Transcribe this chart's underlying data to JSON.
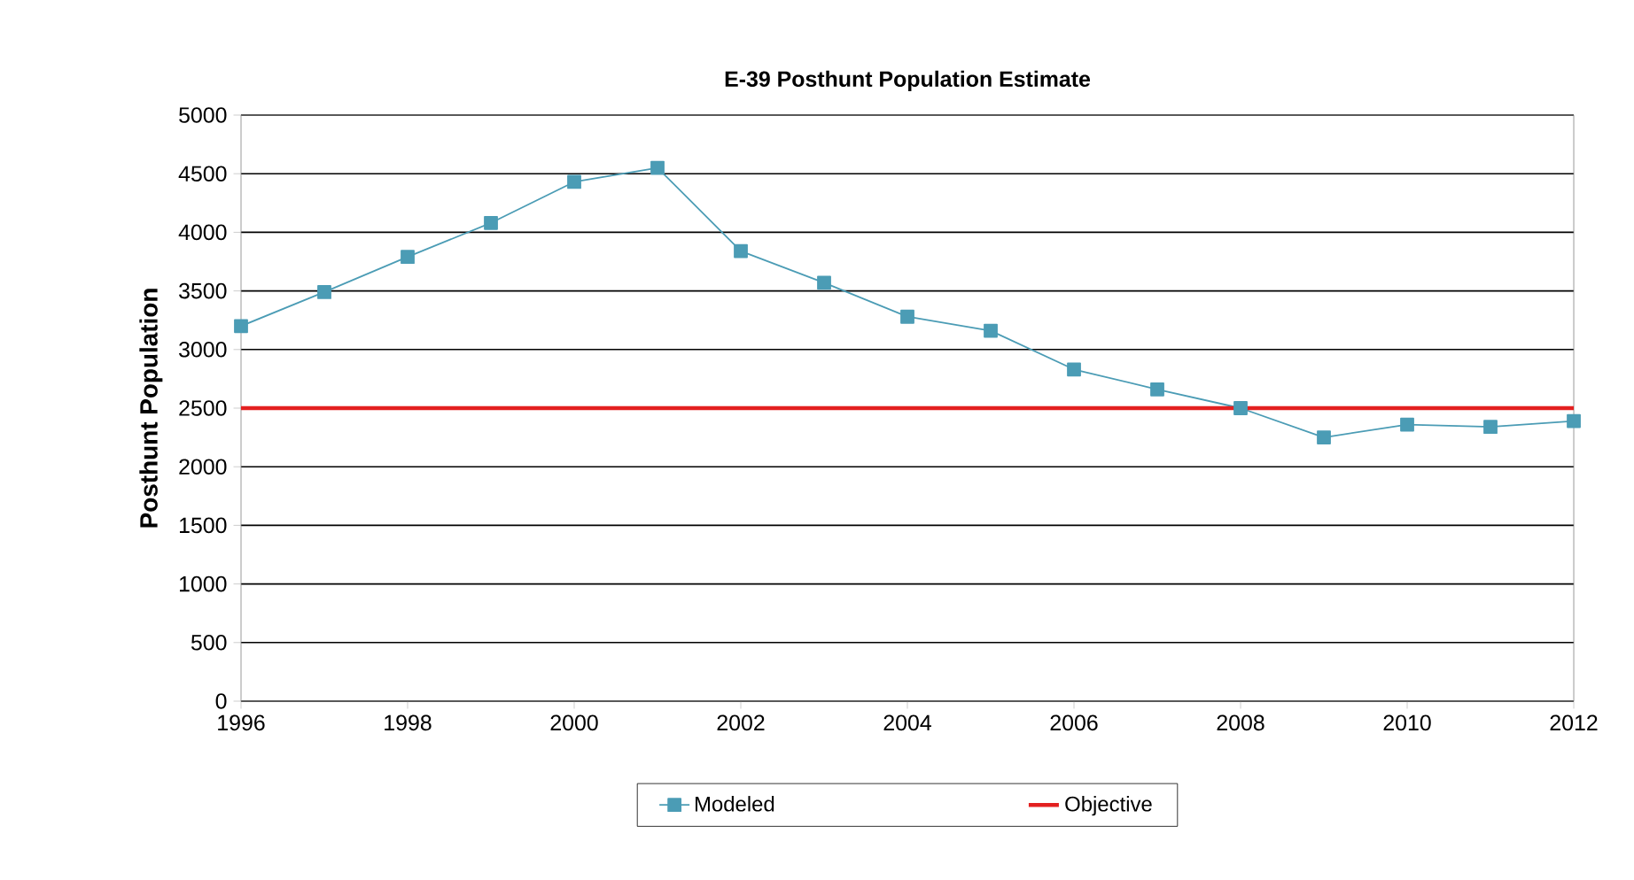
{
  "chart_data": {
    "type": "line",
    "title": "E-39 Posthunt Population Estimate",
    "ylabel": "Posthunt Population",
    "x": [
      1996,
      1997,
      1998,
      1999,
      2000,
      2001,
      2002,
      2003,
      2004,
      2005,
      2006,
      2007,
      2008,
      2009,
      2010,
      2011,
      2012
    ],
    "series": [
      {
        "name": "Modeled",
        "color": "#4b9cb5",
        "values": [
          3200,
          3490,
          3790,
          4080,
          4430,
          4550,
          3840,
          3570,
          3280,
          3160,
          2830,
          2660,
          2500,
          2250,
          2360,
          2340,
          2390
        ]
      }
    ],
    "ref_lines": [
      {
        "axis": "y",
        "value": 2500,
        "label": "Objective",
        "color": "#e32020"
      }
    ],
    "xlim": [
      1996,
      2012
    ],
    "xticks": [
      1996,
      1998,
      2000,
      2002,
      2004,
      2006,
      2008,
      2010,
      2012
    ],
    "ylim": [
      0,
      5000
    ],
    "yticks": [
      0,
      500,
      1000,
      1500,
      2000,
      2500,
      3000,
      3500,
      4000,
      4500,
      5000
    ],
    "grid": "y",
    "legend": "bottom",
    "marker": "square",
    "line_style": "solid"
  }
}
